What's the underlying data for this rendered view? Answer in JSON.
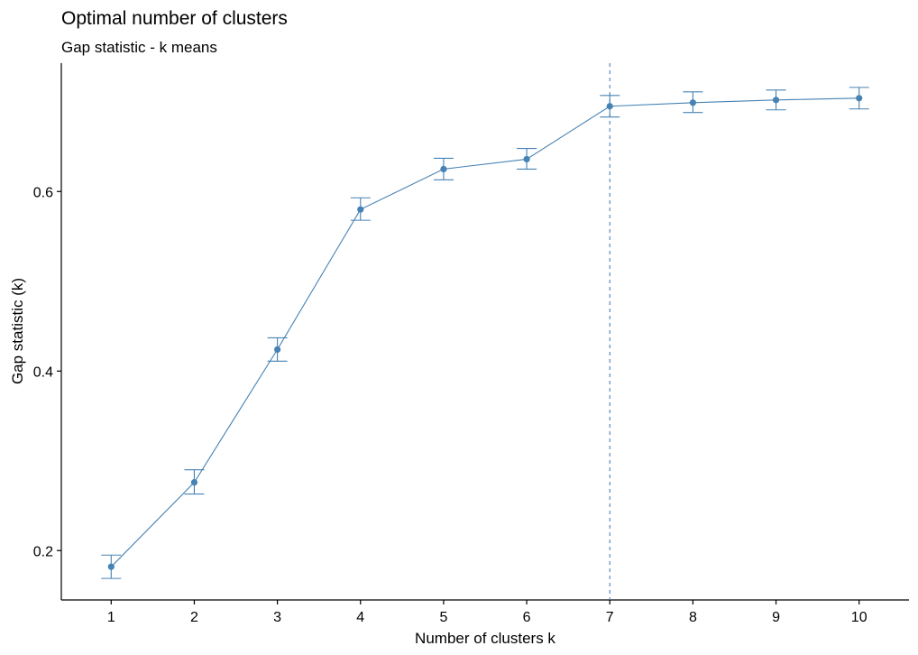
{
  "chart_data": {
    "type": "line",
    "title": "Optimal number of clusters",
    "subtitle": "Gap statistic - k means",
    "xlabel": "Number of clusters k",
    "ylabel": "Gap statistic (k)",
    "categories": [
      "1",
      "2",
      "3",
      "4",
      "5",
      "6",
      "7",
      "8",
      "9",
      "10"
    ],
    "series": [
      {
        "values": [
          0.182,
          0.276,
          0.424,
          0.58,
          0.625,
          0.636,
          0.695,
          0.699,
          0.702,
          0.704
        ],
        "error_lower": [
          0.169,
          0.263,
          0.411,
          0.568,
          0.613,
          0.625,
          0.683,
          0.688,
          0.691,
          0.692
        ],
        "error_upper": [
          0.195,
          0.29,
          0.437,
          0.593,
          0.637,
          0.648,
          0.707,
          0.711,
          0.713,
          0.716
        ]
      }
    ],
    "x_range": [
      0.4,
      10.6
    ],
    "ylim": [
      0.145,
      0.743
    ],
    "y_ticks": [
      0.2,
      0.4,
      0.6
    ],
    "y_tick_labels": [
      "0.2",
      "0.4",
      "0.6"
    ],
    "optimal_k": 7,
    "optimal_line_style": "dashed",
    "grid": false,
    "legend": "none",
    "colors": {
      "series": "#4682B4",
      "optimal_line": "#4682B4",
      "axis": "#000000",
      "background": "#FFFFFF"
    }
  }
}
